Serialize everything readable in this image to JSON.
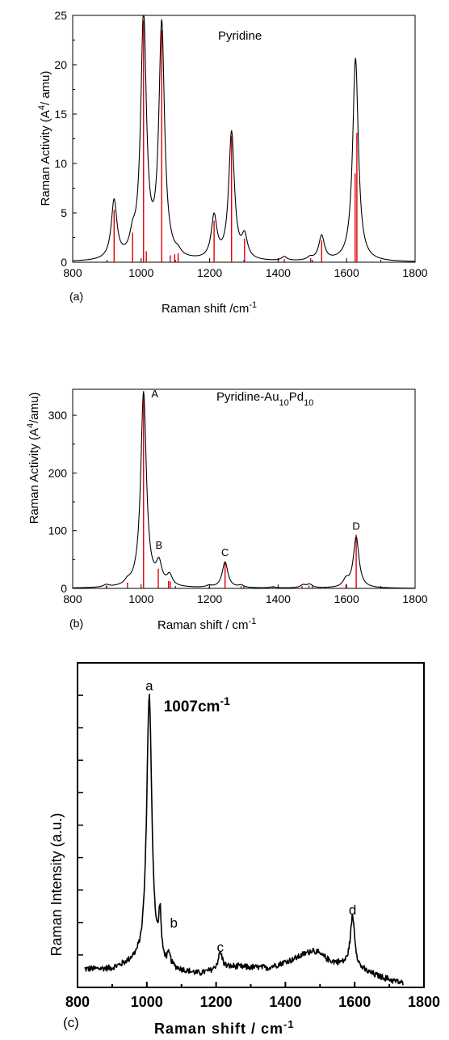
{
  "chart_data": [
    {
      "type": "line",
      "panel_label": "(a)",
      "title": "Pyridine",
      "xlabel_main": "Raman shift /cm",
      "xlabel_sup": "-1",
      "ylabel_parts": [
        "Raman Activity (A",
        "4",
        "/ amu)"
      ],
      "xlim": [
        800,
        1800
      ],
      "ylim": [
        0,
        25
      ],
      "xticks": [
        800,
        1000,
        1200,
        1400,
        1600,
        1800
      ],
      "yticks": [
        0,
        5,
        10,
        15,
        20,
        25
      ],
      "line_color": "#000000",
      "stick_color": "#dd0000",
      "peaks": [
        {
          "x": 921,
          "y": 5.9,
          "w": 10
        },
        {
          "x": 975,
          "y": 1.6,
          "w": 10
        },
        {
          "x": 1007,
          "y": 24.5,
          "w": 10
        },
        {
          "x": 1060,
          "y": 23.6,
          "w": 10
        },
        {
          "x": 1108,
          "y": 0.4,
          "w": 10
        },
        {
          "x": 1213,
          "y": 4.3,
          "w": 10
        },
        {
          "x": 1264,
          "y": 12.9,
          "w": 10
        },
        {
          "x": 1302,
          "y": 2.2,
          "w": 10
        },
        {
          "x": 1418,
          "y": 0.4,
          "w": 10
        },
        {
          "x": 1493,
          "y": 0.3,
          "w": 10
        },
        {
          "x": 1527,
          "y": 2.5,
          "w": 10
        },
        {
          "x": 1626,
          "y": 20.6,
          "w": 10
        }
      ],
      "sticks": [
        {
          "x": 921,
          "y": 5.3
        },
        {
          "x": 975,
          "y": 3.0
        },
        {
          "x": 1007,
          "y": 24.5
        },
        {
          "x": 1015,
          "y": 1.1
        },
        {
          "x": 1060,
          "y": 23.5
        },
        {
          "x": 1085,
          "y": 0.7
        },
        {
          "x": 1098,
          "y": 0.8
        },
        {
          "x": 1108,
          "y": 0.9
        },
        {
          "x": 1213,
          "y": 4.2
        },
        {
          "x": 1264,
          "y": 12.8
        },
        {
          "x": 1302,
          "y": 2.4
        },
        {
          "x": 1418,
          "y": 0.3
        },
        {
          "x": 1495,
          "y": 0.4
        },
        {
          "x": 1527,
          "y": 2.2
        },
        {
          "x": 1625,
          "y": 9.0
        },
        {
          "x": 1630,
          "y": 13.1
        }
      ]
    },
    {
      "type": "line",
      "panel_label": "(b)",
      "title_parts": [
        "Pyridine-Au",
        "10",
        "Pd",
        "10"
      ],
      "xlabel_main": "Raman shift / cm",
      "xlabel_sup": "-1",
      "ylabel_parts": [
        "Raman Activity (A",
        "4",
        "/amu)"
      ],
      "xlim": [
        800,
        1800
      ],
      "ylim": [
        0,
        345
      ],
      "xticks": [
        800,
        1000,
        1200,
        1400,
        1600,
        1800
      ],
      "yticks": [
        0,
        100,
        200,
        300
      ],
      "line_color": "#000000",
      "stick_color": "#dd0000",
      "peak_labels": [
        {
          "text": "A",
          "x": 1007,
          "y": 345
        },
        {
          "text": "B",
          "x": 1052,
          "y": 60
        },
        {
          "text": "C",
          "x": 1245,
          "y": 48
        },
        {
          "text": "D",
          "x": 1628,
          "y": 93
        }
      ],
      "peaks": [
        {
          "x": 898,
          "y": 4,
          "w": 10
        },
        {
          "x": 960,
          "y": 6,
          "w": 10
        },
        {
          "x": 1007,
          "y": 338,
          "w": 10
        },
        {
          "x": 1052,
          "y": 36,
          "w": 10
        },
        {
          "x": 1083,
          "y": 18,
          "w": 10
        },
        {
          "x": 1198,
          "y": 3,
          "w": 10
        },
        {
          "x": 1245,
          "y": 45,
          "w": 10
        },
        {
          "x": 1292,
          "y": 4,
          "w": 10
        },
        {
          "x": 1385,
          "y": 2,
          "w": 10
        },
        {
          "x": 1473,
          "y": 5,
          "w": 10
        },
        {
          "x": 1492,
          "y": 6,
          "w": 10
        },
        {
          "x": 1598,
          "y": 12,
          "w": 10
        },
        {
          "x": 1628,
          "y": 88,
          "w": 10
        }
      ],
      "sticks": [
        {
          "x": 898,
          "y": 5
        },
        {
          "x": 960,
          "y": 10
        },
        {
          "x": 1007,
          "y": 342
        },
        {
          "x": 1050,
          "y": 34
        },
        {
          "x": 1080,
          "y": 13
        },
        {
          "x": 1085,
          "y": 12
        },
        {
          "x": 1198,
          "y": 3
        },
        {
          "x": 1245,
          "y": 44
        },
        {
          "x": 1292,
          "y": 4
        },
        {
          "x": 1385,
          "y": 2
        },
        {
          "x": 1470,
          "y": 4
        },
        {
          "x": 1490,
          "y": 5
        },
        {
          "x": 1598,
          "y": 7
        },
        {
          "x": 1628,
          "y": 93
        }
      ]
    },
    {
      "type": "line",
      "panel_label": "(c)",
      "xlabel_main": "Raman shift / cm",
      "xlabel_sup": "-1",
      "ylabel": "Raman Intensity (a.u.)",
      "xlim": [
        800,
        1800
      ],
      "ylim": [
        0,
        10
      ],
      "xticks": [
        800,
        1000,
        1200,
        1400,
        1600,
        1800
      ],
      "yticks_count": 10,
      "show_y_tick_labels": false,
      "line_color": "#000000",
      "annotation_main": "1007cm",
      "annotation_sup": "-1",
      "annotation_pos": {
        "x": 1100,
        "y": 8.5
      },
      "peak_labels": [
        {
          "text": "a",
          "x": 1007,
          "y": 9.0
        },
        {
          "text": "b",
          "x": 1050,
          "y": 1.7
        },
        {
          "text": "c",
          "x": 1212,
          "y": 0.95
        },
        {
          "text": "d",
          "x": 1594,
          "y": 2.1
        }
      ],
      "x_range": [
        820,
        1740
      ],
      "baseline": [
        [
          820,
          0.55
        ],
        [
          900,
          0.55
        ],
        [
          960,
          0.72
        ],
        [
          1050,
          0.55
        ],
        [
          1150,
          0.4
        ],
        [
          1250,
          0.62
        ],
        [
          1350,
          0.6
        ],
        [
          1420,
          0.85
        ],
        [
          1480,
          1.15
        ],
        [
          1530,
          0.8
        ],
        [
          1570,
          0.68
        ],
        [
          1620,
          0.5
        ],
        [
          1680,
          0.3
        ],
        [
          1740,
          0.12
        ]
      ],
      "peaks": [
        {
          "x": 1007,
          "y": 8.35,
          "w": 9
        },
        {
          "x": 1038,
          "y": 1.4,
          "w": 4
        },
        {
          "x": 1064,
          "y": 0.3,
          "w": 6
        },
        {
          "x": 1212,
          "y": 0.52,
          "w": 8
        },
        {
          "x": 1594,
          "y": 1.6,
          "w": 8
        }
      ],
      "noise": 0.07
    }
  ]
}
